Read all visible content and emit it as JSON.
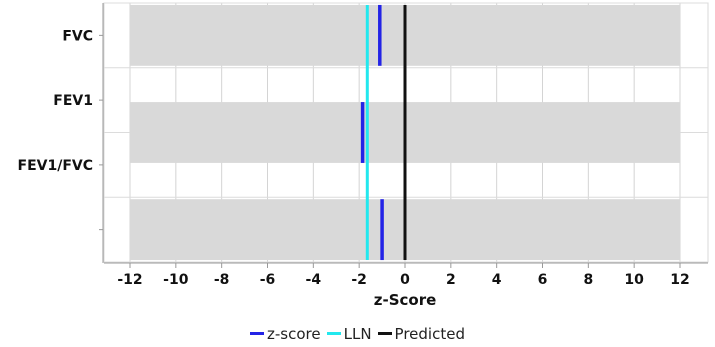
{
  "chart_data": {
    "type": "bar",
    "orientation": "horizontal",
    "categories": [
      "FVC",
      "FEV1",
      "FEV1/FVC"
    ],
    "xlim": [
      -12,
      12
    ],
    "xticks": [
      -12,
      -10,
      -8,
      -6,
      -4,
      -2,
      0,
      2,
      4,
      6,
      8,
      10,
      12
    ],
    "xlabel": "z-Score",
    "grid": true,
    "legend_position": "bottom-center",
    "series": [
      {
        "name": "z-score",
        "color": "#2323e6",
        "values": [
          -1.1,
          -1.85,
          -1.0
        ]
      },
      {
        "name": "LLN",
        "color": "#22e8ee",
        "values": [
          -1.645,
          -1.645,
          -1.645
        ]
      },
      {
        "name": "Predicted",
        "color": "#111111",
        "values": [
          0,
          0,
          0
        ]
      }
    ],
    "band_color": "#d9d9d9"
  }
}
